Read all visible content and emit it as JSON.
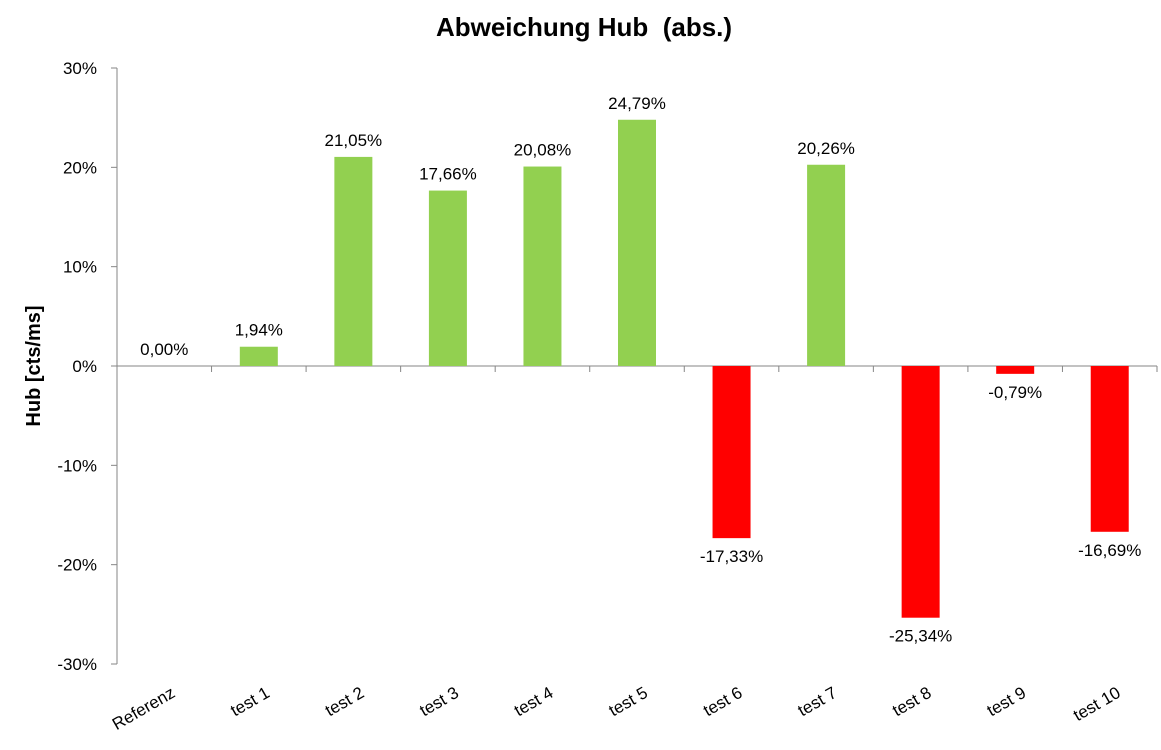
{
  "chart_data": {
    "type": "bar",
    "title": "Abweichung Hub  (abs.)",
    "xlabel": "",
    "ylabel": "Hub [cts/ms]",
    "categories": [
      "Referenz",
      "test 1",
      "test 2",
      "test 3",
      "test 4",
      "test 5",
      "test 6",
      "test 7",
      "test 8",
      "test 9",
      "test 10"
    ],
    "values": [
      0.0,
      1.94,
      21.05,
      17.66,
      20.08,
      24.79,
      -17.33,
      20.26,
      -25.34,
      -0.79,
      -16.69
    ],
    "data_labels": [
      "0,00%",
      "1,94%",
      "21,05%",
      "17,66%",
      "20,08%",
      "24,79%",
      "-17,33%",
      "20,26%",
      "-25,34%",
      "-0,79%",
      "-16,69%"
    ],
    "ylim": [
      -30,
      30
    ],
    "yticks": [
      30,
      20,
      10,
      0,
      -10,
      -20,
      -30
    ],
    "ytick_labels": [
      "30%",
      "20%",
      "10%",
      "0%",
      "-10%",
      "-20%",
      "-30%"
    ],
    "positive_color": "#92D050",
    "negative_color": "#FF0000",
    "axis_color": "#868686",
    "grid": false,
    "legend": "none"
  }
}
